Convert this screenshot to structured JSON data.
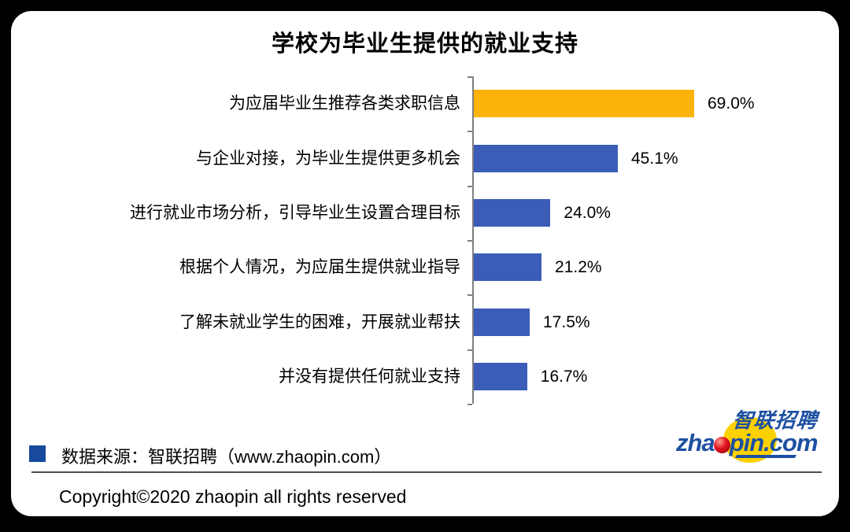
{
  "title": "学校为毕业生提供的就业支持",
  "chart_data": {
    "type": "bar",
    "orientation": "horizontal",
    "title": "学校为毕业生提供的就业支持",
    "categories": [
      "为应届毕业生推荐各类求职信息",
      "与企业对接，为毕业生提供更多机会",
      "进行就业市场分析，引导毕业生设置合理目标",
      "根据个人情况，为应届生提供就业指导",
      "了解未就业学生的困难，开展就业帮扶",
      "并没有提供任何就业支持"
    ],
    "values": [
      69.0,
      45.1,
      24.0,
      21.2,
      17.5,
      16.7
    ],
    "value_labels": [
      "69.0%",
      "45.1%",
      "24.0%",
      "21.2%",
      "17.5%",
      "16.7%"
    ],
    "highlight_index": 0,
    "highlight_color": "#fbb309",
    "bar_color": "#3b5db8",
    "axis_color": "#7f7f7f",
    "xlim": [
      0,
      75
    ],
    "grid": false,
    "legend_position": "none",
    "value_label_position": "outside-end"
  },
  "footer": {
    "legend_marker_color": "#17499d",
    "source_text": "数据来源：智联招聘（www.zhaopin.com）",
    "copyright_text": "Copyright©2020 zhaopin all rights reserved"
  },
  "logo": {
    "text_zh": "智联招聘",
    "text_en_left": "zha",
    "text_en_right": "pin.com",
    "blue": "#1d50a2",
    "yellow": "#fdd000",
    "red": "#ce1126"
  }
}
